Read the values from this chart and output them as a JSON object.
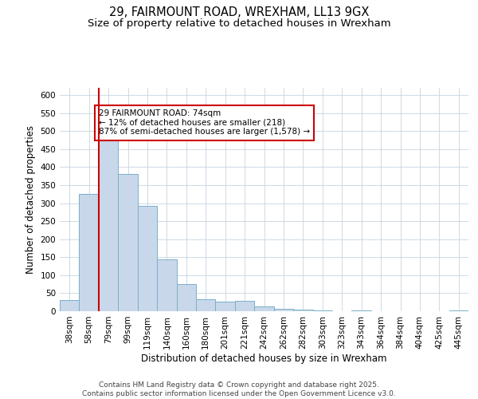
{
  "title_line1": "29, FAIRMOUNT ROAD, WREXHAM, LL13 9GX",
  "title_line2": "Size of property relative to detached houses in Wrexham",
  "xlabel": "Distribution of detached houses by size in Wrexham",
  "ylabel": "Number of detached properties",
  "categories": [
    "38sqm",
    "58sqm",
    "79sqm",
    "99sqm",
    "119sqm",
    "140sqm",
    "160sqm",
    "180sqm",
    "201sqm",
    "221sqm",
    "242sqm",
    "262sqm",
    "282sqm",
    "303sqm",
    "323sqm",
    "343sqm",
    "364sqm",
    "384sqm",
    "404sqm",
    "425sqm",
    "445sqm"
  ],
  "values": [
    30,
    325,
    490,
    380,
    293,
    145,
    76,
    33,
    27,
    28,
    13,
    7,
    4,
    2,
    1,
    2,
    1,
    0,
    0,
    0,
    3
  ],
  "bar_color": "#c8d8ea",
  "bar_edge_color": "#7aafc8",
  "marker_line_color": "#cc0000",
  "annotation_text": "29 FAIRMOUNT ROAD: 74sqm\n← 12% of detached houses are smaller (218)\n87% of semi-detached houses are larger (1,578) →",
  "annotation_box_edge_color": "#cc0000",
  "background_color": "#ffffff",
  "grid_color": "#c8d4e0",
  "ylim": [
    0,
    620
  ],
  "yticks": [
    0,
    50,
    100,
    150,
    200,
    250,
    300,
    350,
    400,
    450,
    500,
    550,
    600
  ],
  "footnote": "Contains HM Land Registry data © Crown copyright and database right 2025.\nContains public sector information licensed under the Open Government Licence v3.0.",
  "title_fontsize": 10.5,
  "subtitle_fontsize": 9.5,
  "axis_label_fontsize": 8.5,
  "tick_fontsize": 7.5,
  "annotation_fontsize": 7.5,
  "footnote_fontsize": 6.5
}
